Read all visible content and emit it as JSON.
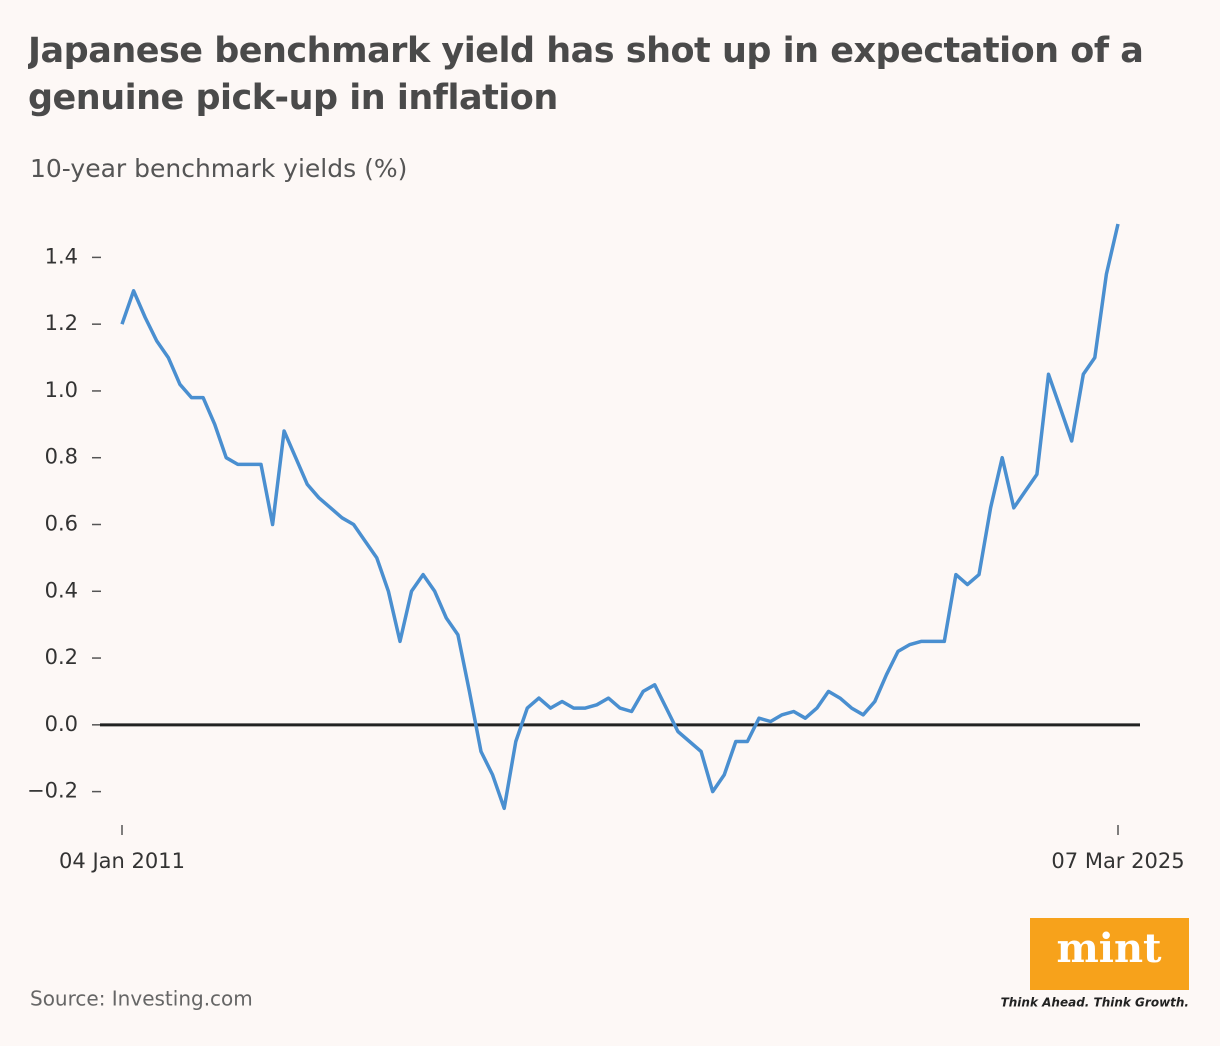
{
  "chart_data": {
    "type": "line",
    "title": "Japanese benchmark yield has shot up in expectation of a genuine pick-up in inflation",
    "subtitle": "10-year benchmark yields (%)",
    "source": "Source: Investing.com",
    "categories": [
      "04 Jan 2011",
      null,
      null,
      null,
      null,
      null,
      null,
      null,
      null,
      null,
      null,
      null,
      null,
      null,
      null,
      null,
      null,
      null,
      null,
      null,
      null,
      null,
      null,
      null,
      null,
      null,
      null,
      null,
      null,
      null,
      null,
      null,
      null,
      null,
      null,
      null,
      null,
      null,
      null,
      null,
      null,
      null,
      null,
      null,
      null,
      null,
      null,
      null,
      null,
      null,
      null,
      null,
      null,
      null,
      null,
      null,
      null,
      null,
      null,
      null,
      null,
      null,
      null,
      null,
      null,
      null,
      null,
      null,
      null,
      null,
      null,
      null,
      null,
      null,
      null,
      null,
      null,
      null,
      null,
      null,
      null,
      null,
      null,
      null,
      null,
      null,
      "07 Mar 2025"
    ],
    "series": [
      {
        "name": "10-year benchmark yield",
        "color": "#4a8fd0",
        "values": [
          1.2,
          1.3,
          1.22,
          1.15,
          1.1,
          1.02,
          0.98,
          0.98,
          0.9,
          0.8,
          0.78,
          0.78,
          0.78,
          0.6,
          0.88,
          0.8,
          0.72,
          0.68,
          0.65,
          0.62,
          0.6,
          0.55,
          0.5,
          0.4,
          0.25,
          0.4,
          0.45,
          0.4,
          0.32,
          0.27,
          0.1,
          -0.08,
          -0.15,
          -0.25,
          -0.05,
          0.05,
          0.08,
          0.05,
          0.07,
          0.05,
          0.05,
          0.06,
          0.08,
          0.05,
          0.04,
          0.1,
          0.12,
          0.05,
          -0.02,
          -0.05,
          -0.08,
          -0.2,
          -0.15,
          -0.05,
          -0.05,
          0.02,
          0.01,
          0.03,
          0.04,
          0.02,
          0.05,
          0.1,
          0.08,
          0.05,
          0.03,
          0.07,
          0.15,
          0.22,
          0.24,
          0.25,
          0.25,
          0.25,
          0.45,
          0.42,
          0.45,
          0.65,
          0.8,
          0.65,
          0.7,
          0.75,
          1.05,
          0.95,
          0.85,
          1.05,
          1.1,
          1.35,
          1.5
        ]
      }
    ],
    "ylim": [
      -0.3,
      1.5
    ],
    "yticks": [
      {
        "value": -0.2,
        "label": "−0.2"
      },
      {
        "value": 0,
        "label": "0.0"
      },
      0.2,
      0.4,
      0.6,
      0.8,
      {
        "value": 1,
        "label": "1.0"
      },
      1.2,
      1.4
    ],
    "zero_line": true
  },
  "branding": {
    "logo": "mint",
    "tagline": "Think Ahead. Think Growth."
  }
}
